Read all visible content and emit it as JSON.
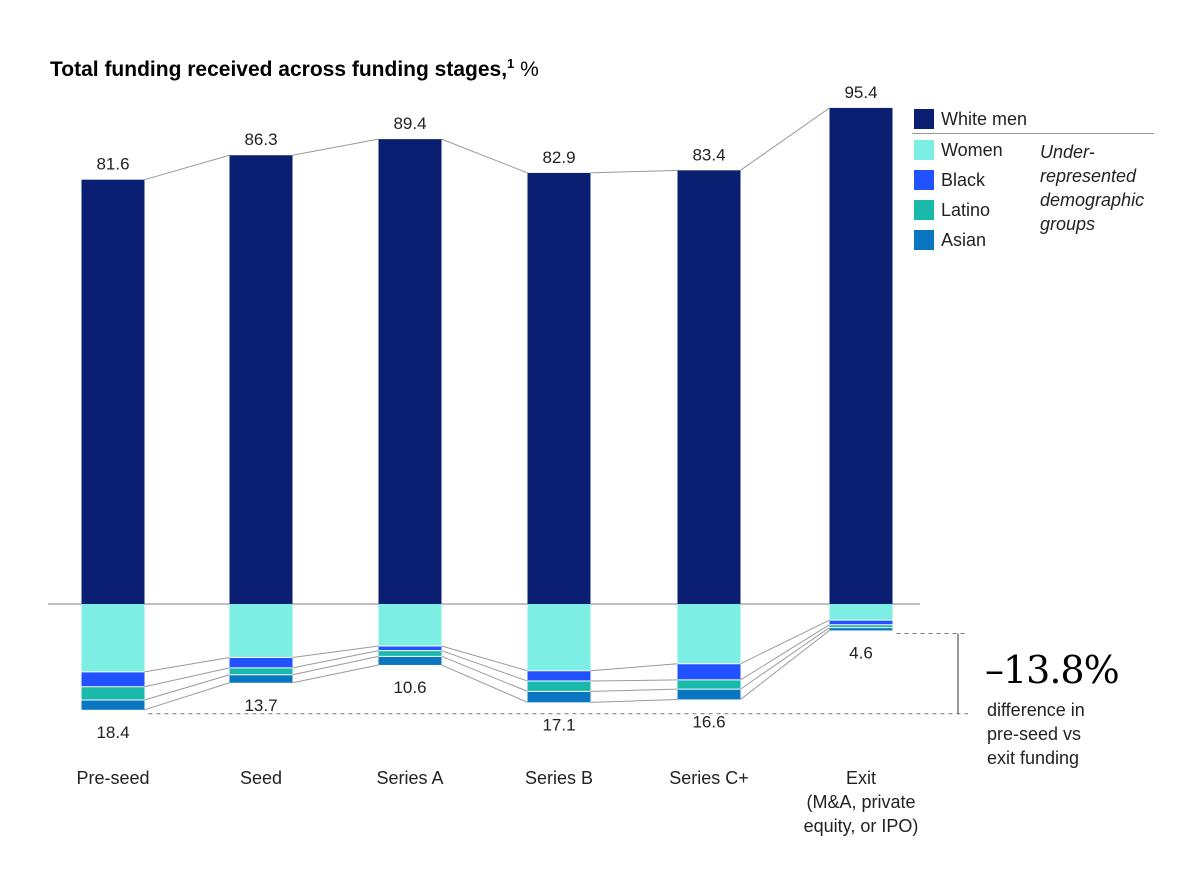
{
  "chart_data": {
    "type": "bar",
    "title": "Total funding received across funding stages,",
    "title_footnote": "1",
    "title_unit": "%",
    "categories": [
      "Pre-seed",
      "Seed",
      "Series A",
      "Series B",
      "Series C+",
      "Exit\n(M&A, private\nequity, or IPO)"
    ],
    "series": [
      {
        "name": "White men",
        "color": "#0a1f72",
        "values": [
          81.6,
          86.3,
          89.4,
          82.9,
          83.4,
          95.4
        ]
      },
      {
        "name": "Women",
        "color": "#7ceee4",
        "values": [
          11.8,
          9.3,
          7.3,
          11.6,
          10.4,
          2.8
        ]
      },
      {
        "name": "Black",
        "color": "#2251ff",
        "values": [
          2.6,
          1.8,
          0.8,
          1.8,
          2.8,
          0.8
        ]
      },
      {
        "name": "Latino",
        "color": "#1bb9a9",
        "values": [
          2.3,
          1.2,
          1.0,
          1.8,
          1.6,
          0.5
        ]
      },
      {
        "name": "Asian",
        "color": "#0a76c2",
        "values": [
          1.7,
          1.4,
          1.5,
          1.9,
          1.8,
          0.5
        ]
      }
    ],
    "underrepresented_totals": [
      18.4,
      13.7,
      10.6,
      17.1,
      16.6,
      4.6
    ],
    "ylim": [
      0,
      100
    ],
    "legend_group_label": "Under-\nrepresented\ndemographic\ngroups",
    "annotation": {
      "value": "–13.8%",
      "text": "difference in\npre-seed vs\nexit funding"
    }
  }
}
